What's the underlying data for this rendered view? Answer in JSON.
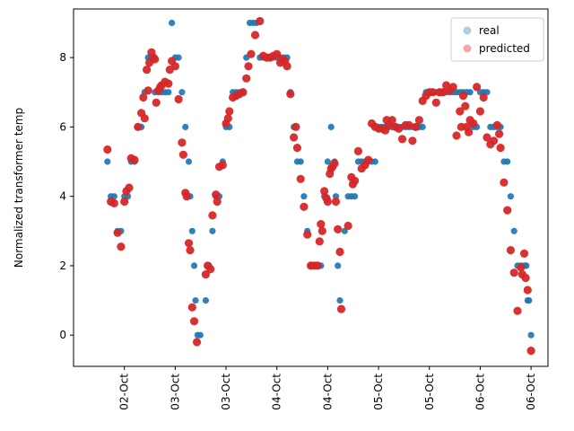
{
  "chart_data": {
    "type": "scatter",
    "title": "",
    "xlabel": "",
    "ylabel": "Normalized transformer temp",
    "x_tick_labels": [
      "02-Oct",
      "03-Oct",
      "03-Oct",
      "04-Oct",
      "04-Oct",
      "05-Oct",
      "05-Oct",
      "06-Oct",
      "06-Oct"
    ],
    "ylim": [
      -0.9,
      9.4
    ],
    "y_ticks": [
      0,
      2,
      4,
      6,
      8
    ],
    "grid": false,
    "legend_position": "upper right",
    "series": [
      {
        "name": "real",
        "color": "#1f77b4",
        "legend_color": "#aecde3",
        "points": [
          [
            0.5,
            5
          ],
          [
            0.55,
            4
          ],
          [
            0.6,
            4
          ],
          [
            0.65,
            3
          ],
          [
            0.7,
            3
          ],
          [
            0.75,
            4
          ],
          [
            0.8,
            4
          ],
          [
            0.85,
            5
          ],
          [
            0.9,
            5
          ],
          [
            0.95,
            6
          ],
          [
            1.0,
            6
          ],
          [
            1.05,
            7
          ],
          [
            1.1,
            8
          ],
          [
            1.15,
            8
          ],
          [
            1.2,
            7
          ],
          [
            1.25,
            7
          ],
          [
            1.3,
            7
          ],
          [
            1.35,
            7
          ],
          [
            1.4,
            7
          ],
          [
            1.45,
            9
          ],
          [
            1.5,
            8
          ],
          [
            1.55,
            8
          ],
          [
            1.6,
            7
          ],
          [
            1.65,
            6
          ],
          [
            1.7,
            5
          ],
          [
            1.72,
            4
          ],
          [
            1.75,
            3
          ],
          [
            1.78,
            2
          ],
          [
            1.8,
            1
          ],
          [
            1.83,
            0
          ],
          [
            1.87,
            0
          ],
          [
            1.95,
            1
          ],
          [
            2.0,
            2
          ],
          [
            2.05,
            3
          ],
          [
            2.1,
            4
          ],
          [
            2.15,
            4
          ],
          [
            2.2,
            5
          ],
          [
            2.25,
            6
          ],
          [
            2.3,
            6
          ],
          [
            2.35,
            7
          ],
          [
            2.4,
            7
          ],
          [
            2.45,
            7
          ],
          [
            2.5,
            7
          ],
          [
            2.55,
            8
          ],
          [
            2.6,
            9
          ],
          [
            2.65,
            9
          ],
          [
            2.7,
            9
          ],
          [
            2.75,
            8
          ],
          [
            2.8,
            8
          ],
          [
            2.85,
            8
          ],
          [
            2.9,
            8
          ],
          [
            2.95,
            8
          ],
          [
            3.0,
            8
          ],
          [
            3.05,
            8
          ],
          [
            3.1,
            8
          ],
          [
            3.15,
            8
          ],
          [
            3.2,
            7
          ],
          [
            3.25,
            6
          ],
          [
            3.3,
            5
          ],
          [
            3.35,
            5
          ],
          [
            3.4,
            4
          ],
          [
            3.45,
            3
          ],
          [
            3.5,
            2
          ],
          [
            3.55,
            2
          ],
          [
            3.6,
            2
          ],
          [
            3.65,
            2
          ],
          [
            3.7,
            4
          ],
          [
            3.75,
            5
          ],
          [
            3.8,
            6
          ],
          [
            3.85,
            5
          ],
          [
            3.87,
            4
          ],
          [
            3.9,
            2
          ],
          [
            3.93,
            1
          ],
          [
            4.0,
            3
          ],
          [
            4.05,
            4
          ],
          [
            4.1,
            4
          ],
          [
            4.15,
            4
          ],
          [
            4.2,
            5
          ],
          [
            4.25,
            5
          ],
          [
            4.3,
            5
          ],
          [
            4.35,
            5
          ],
          [
            4.4,
            5
          ],
          [
            4.45,
            5
          ],
          [
            4.5,
            6
          ],
          [
            4.55,
            6
          ],
          [
            4.6,
            6
          ],
          [
            4.65,
            6
          ],
          [
            4.7,
            6
          ],
          [
            4.75,
            6
          ],
          [
            4.8,
            6
          ],
          [
            4.85,
            6
          ],
          [
            4.9,
            6
          ],
          [
            4.95,
            6
          ],
          [
            5.0,
            6
          ],
          [
            5.05,
            6
          ],
          [
            5.1,
            6
          ],
          [
            5.15,
            6
          ],
          [
            5.2,
            7
          ],
          [
            5.25,
            7
          ],
          [
            5.3,
            7
          ],
          [
            5.35,
            7
          ],
          [
            5.4,
            7
          ],
          [
            5.45,
            7
          ],
          [
            5.5,
            7
          ],
          [
            5.55,
            7
          ],
          [
            5.6,
            7
          ],
          [
            5.65,
            7
          ],
          [
            5.7,
            7
          ],
          [
            5.75,
            7
          ],
          [
            5.8,
            7
          ],
          [
            5.85,
            7
          ],
          [
            5.9,
            6
          ],
          [
            5.95,
            6
          ],
          [
            6.0,
            7
          ],
          [
            6.05,
            7
          ],
          [
            6.1,
            7
          ],
          [
            6.15,
            6
          ],
          [
            6.2,
            6
          ],
          [
            6.25,
            6
          ],
          [
            6.3,
            6
          ],
          [
            6.35,
            5
          ],
          [
            6.4,
            5
          ],
          [
            6.45,
            4
          ],
          [
            6.5,
            3
          ],
          [
            6.55,
            2
          ],
          [
            6.6,
            2
          ],
          [
            6.65,
            2
          ],
          [
            6.68,
            2
          ],
          [
            6.7,
            1
          ],
          [
            6.72,
            1
          ],
          [
            6.75,
            0
          ]
        ]
      },
      {
        "name": "predicted",
        "color": "#d62728",
        "legend_color": "#f0aaab",
        "points": [
          [
            0.5,
            5.35
          ],
          [
            0.55,
            3.85
          ],
          [
            0.6,
            3.8
          ],
          [
            0.65,
            2.95
          ],
          [
            0.7,
            2.55
          ],
          [
            0.75,
            3.85
          ],
          [
            0.78,
            4.15
          ],
          [
            0.82,
            4.25
          ],
          [
            0.85,
            5.1
          ],
          [
            0.9,
            5.05
          ],
          [
            0.95,
            6.0
          ],
          [
            1.0,
            6.4
          ],
          [
            1.03,
            6.85
          ],
          [
            1.05,
            6.25
          ],
          [
            1.08,
            7.65
          ],
          [
            1.1,
            7.05
          ],
          [
            1.12,
            7.85
          ],
          [
            1.15,
            8.15
          ],
          [
            1.18,
            8.0
          ],
          [
            1.2,
            7.95
          ],
          [
            1.22,
            6.7
          ],
          [
            1.25,
            7.05
          ],
          [
            1.28,
            7.15
          ],
          [
            1.3,
            7.2
          ],
          [
            1.35,
            7.3
          ],
          [
            1.4,
            7.25
          ],
          [
            1.42,
            7.65
          ],
          [
            1.45,
            7.9
          ],
          [
            1.5,
            7.75
          ],
          [
            1.55,
            6.8
          ],
          [
            1.6,
            5.55
          ],
          [
            1.62,
            5.2
          ],
          [
            1.65,
            4.1
          ],
          [
            1.67,
            4.0
          ],
          [
            1.7,
            2.65
          ],
          [
            1.72,
            2.45
          ],
          [
            1.75,
            0.8
          ],
          [
            1.78,
            0.4
          ],
          [
            1.82,
            -0.2
          ],
          [
            1.95,
            1.75
          ],
          [
            1.98,
            2.0
          ],
          [
            2.02,
            1.9
          ],
          [
            2.05,
            3.45
          ],
          [
            2.1,
            4.05
          ],
          [
            2.12,
            3.85
          ],
          [
            2.15,
            4.85
          ],
          [
            2.2,
            4.9
          ],
          [
            2.25,
            6.1
          ],
          [
            2.28,
            6.25
          ],
          [
            2.3,
            6.45
          ],
          [
            2.35,
            6.85
          ],
          [
            2.4,
            6.9
          ],
          [
            2.45,
            6.95
          ],
          [
            2.5,
            7.0
          ],
          [
            2.55,
            7.4
          ],
          [
            2.58,
            7.75
          ],
          [
            2.62,
            8.1
          ],
          [
            2.68,
            8.65
          ],
          [
            2.75,
            9.05
          ],
          [
            2.8,
            8.05
          ],
          [
            2.85,
            8.0
          ],
          [
            2.9,
            8.0
          ],
          [
            2.95,
            8.05
          ],
          [
            3.0,
            8.1
          ],
          [
            3.05,
            7.85
          ],
          [
            3.08,
            7.95
          ],
          [
            3.12,
            7.9
          ],
          [
            3.15,
            7.75
          ],
          [
            3.2,
            6.95
          ],
          [
            3.25,
            5.7
          ],
          [
            3.28,
            6.0
          ],
          [
            3.3,
            5.4
          ],
          [
            3.35,
            4.5
          ],
          [
            3.4,
            3.7
          ],
          [
            3.45,
            2.9
          ],
          [
            3.5,
            2.0
          ],
          [
            3.55,
            2.0
          ],
          [
            3.6,
            2.0
          ],
          [
            3.63,
            2.7
          ],
          [
            3.65,
            3.2
          ],
          [
            3.67,
            3.0
          ],
          [
            3.7,
            4.15
          ],
          [
            3.73,
            3.95
          ],
          [
            3.75,
            3.85
          ],
          [
            3.78,
            4.65
          ],
          [
            3.8,
            4.8
          ],
          [
            3.82,
            4.85
          ],
          [
            3.85,
            4.95
          ],
          [
            3.87,
            3.85
          ],
          [
            3.9,
            3.05
          ],
          [
            3.93,
            2.4
          ],
          [
            3.95,
            0.75
          ],
          [
            4.05,
            3.15
          ],
          [
            4.1,
            4.55
          ],
          [
            4.12,
            4.35
          ],
          [
            4.15,
            4.45
          ],
          [
            4.2,
            5.3
          ],
          [
            4.25,
            4.8
          ],
          [
            4.3,
            4.9
          ],
          [
            4.35,
            5.05
          ],
          [
            4.4,
            6.1
          ],
          [
            4.45,
            6.0
          ],
          [
            4.5,
            5.95
          ],
          [
            4.55,
            5.95
          ],
          [
            4.6,
            5.9
          ],
          [
            4.62,
            6.2
          ],
          [
            4.65,
            6.05
          ],
          [
            4.7,
            6.2
          ],
          [
            4.75,
            6.0
          ],
          [
            4.8,
            5.95
          ],
          [
            4.85,
            5.65
          ],
          [
            4.9,
            6.05
          ],
          [
            4.95,
            6.05
          ],
          [
            5.0,
            5.6
          ],
          [
            5.05,
            6.0
          ],
          [
            5.1,
            6.2
          ],
          [
            5.15,
            6.75
          ],
          [
            5.2,
            6.9
          ],
          [
            5.25,
            7.0
          ],
          [
            5.3,
            7.0
          ],
          [
            5.35,
            6.7
          ],
          [
            5.4,
            7.0
          ],
          [
            5.45,
            7.0
          ],
          [
            5.5,
            7.2
          ],
          [
            5.55,
            7.05
          ],
          [
            5.6,
            7.15
          ],
          [
            5.65,
            5.75
          ],
          [
            5.7,
            6.45
          ],
          [
            5.72,
            6.0
          ],
          [
            5.75,
            6.9
          ],
          [
            5.78,
            6.6
          ],
          [
            5.8,
            6.0
          ],
          [
            5.83,
            5.85
          ],
          [
            5.85,
            6.2
          ],
          [
            5.9,
            6.1
          ],
          [
            5.95,
            7.15
          ],
          [
            6.0,
            6.45
          ],
          [
            6.05,
            6.85
          ],
          [
            6.1,
            5.7
          ],
          [
            6.15,
            5.5
          ],
          [
            6.2,
            5.6
          ],
          [
            6.25,
            6.05
          ],
          [
            6.28,
            5.8
          ],
          [
            6.3,
            5.4
          ],
          [
            6.35,
            4.4
          ],
          [
            6.4,
            3.6
          ],
          [
            6.45,
            2.45
          ],
          [
            6.5,
            1.8
          ],
          [
            6.55,
            0.7
          ],
          [
            6.6,
            1.95
          ],
          [
            6.62,
            1.75
          ],
          [
            6.65,
            2.35
          ],
          [
            6.67,
            1.65
          ],
          [
            6.7,
            1.3
          ],
          [
            6.75,
            -0.45
          ]
        ]
      }
    ]
  }
}
